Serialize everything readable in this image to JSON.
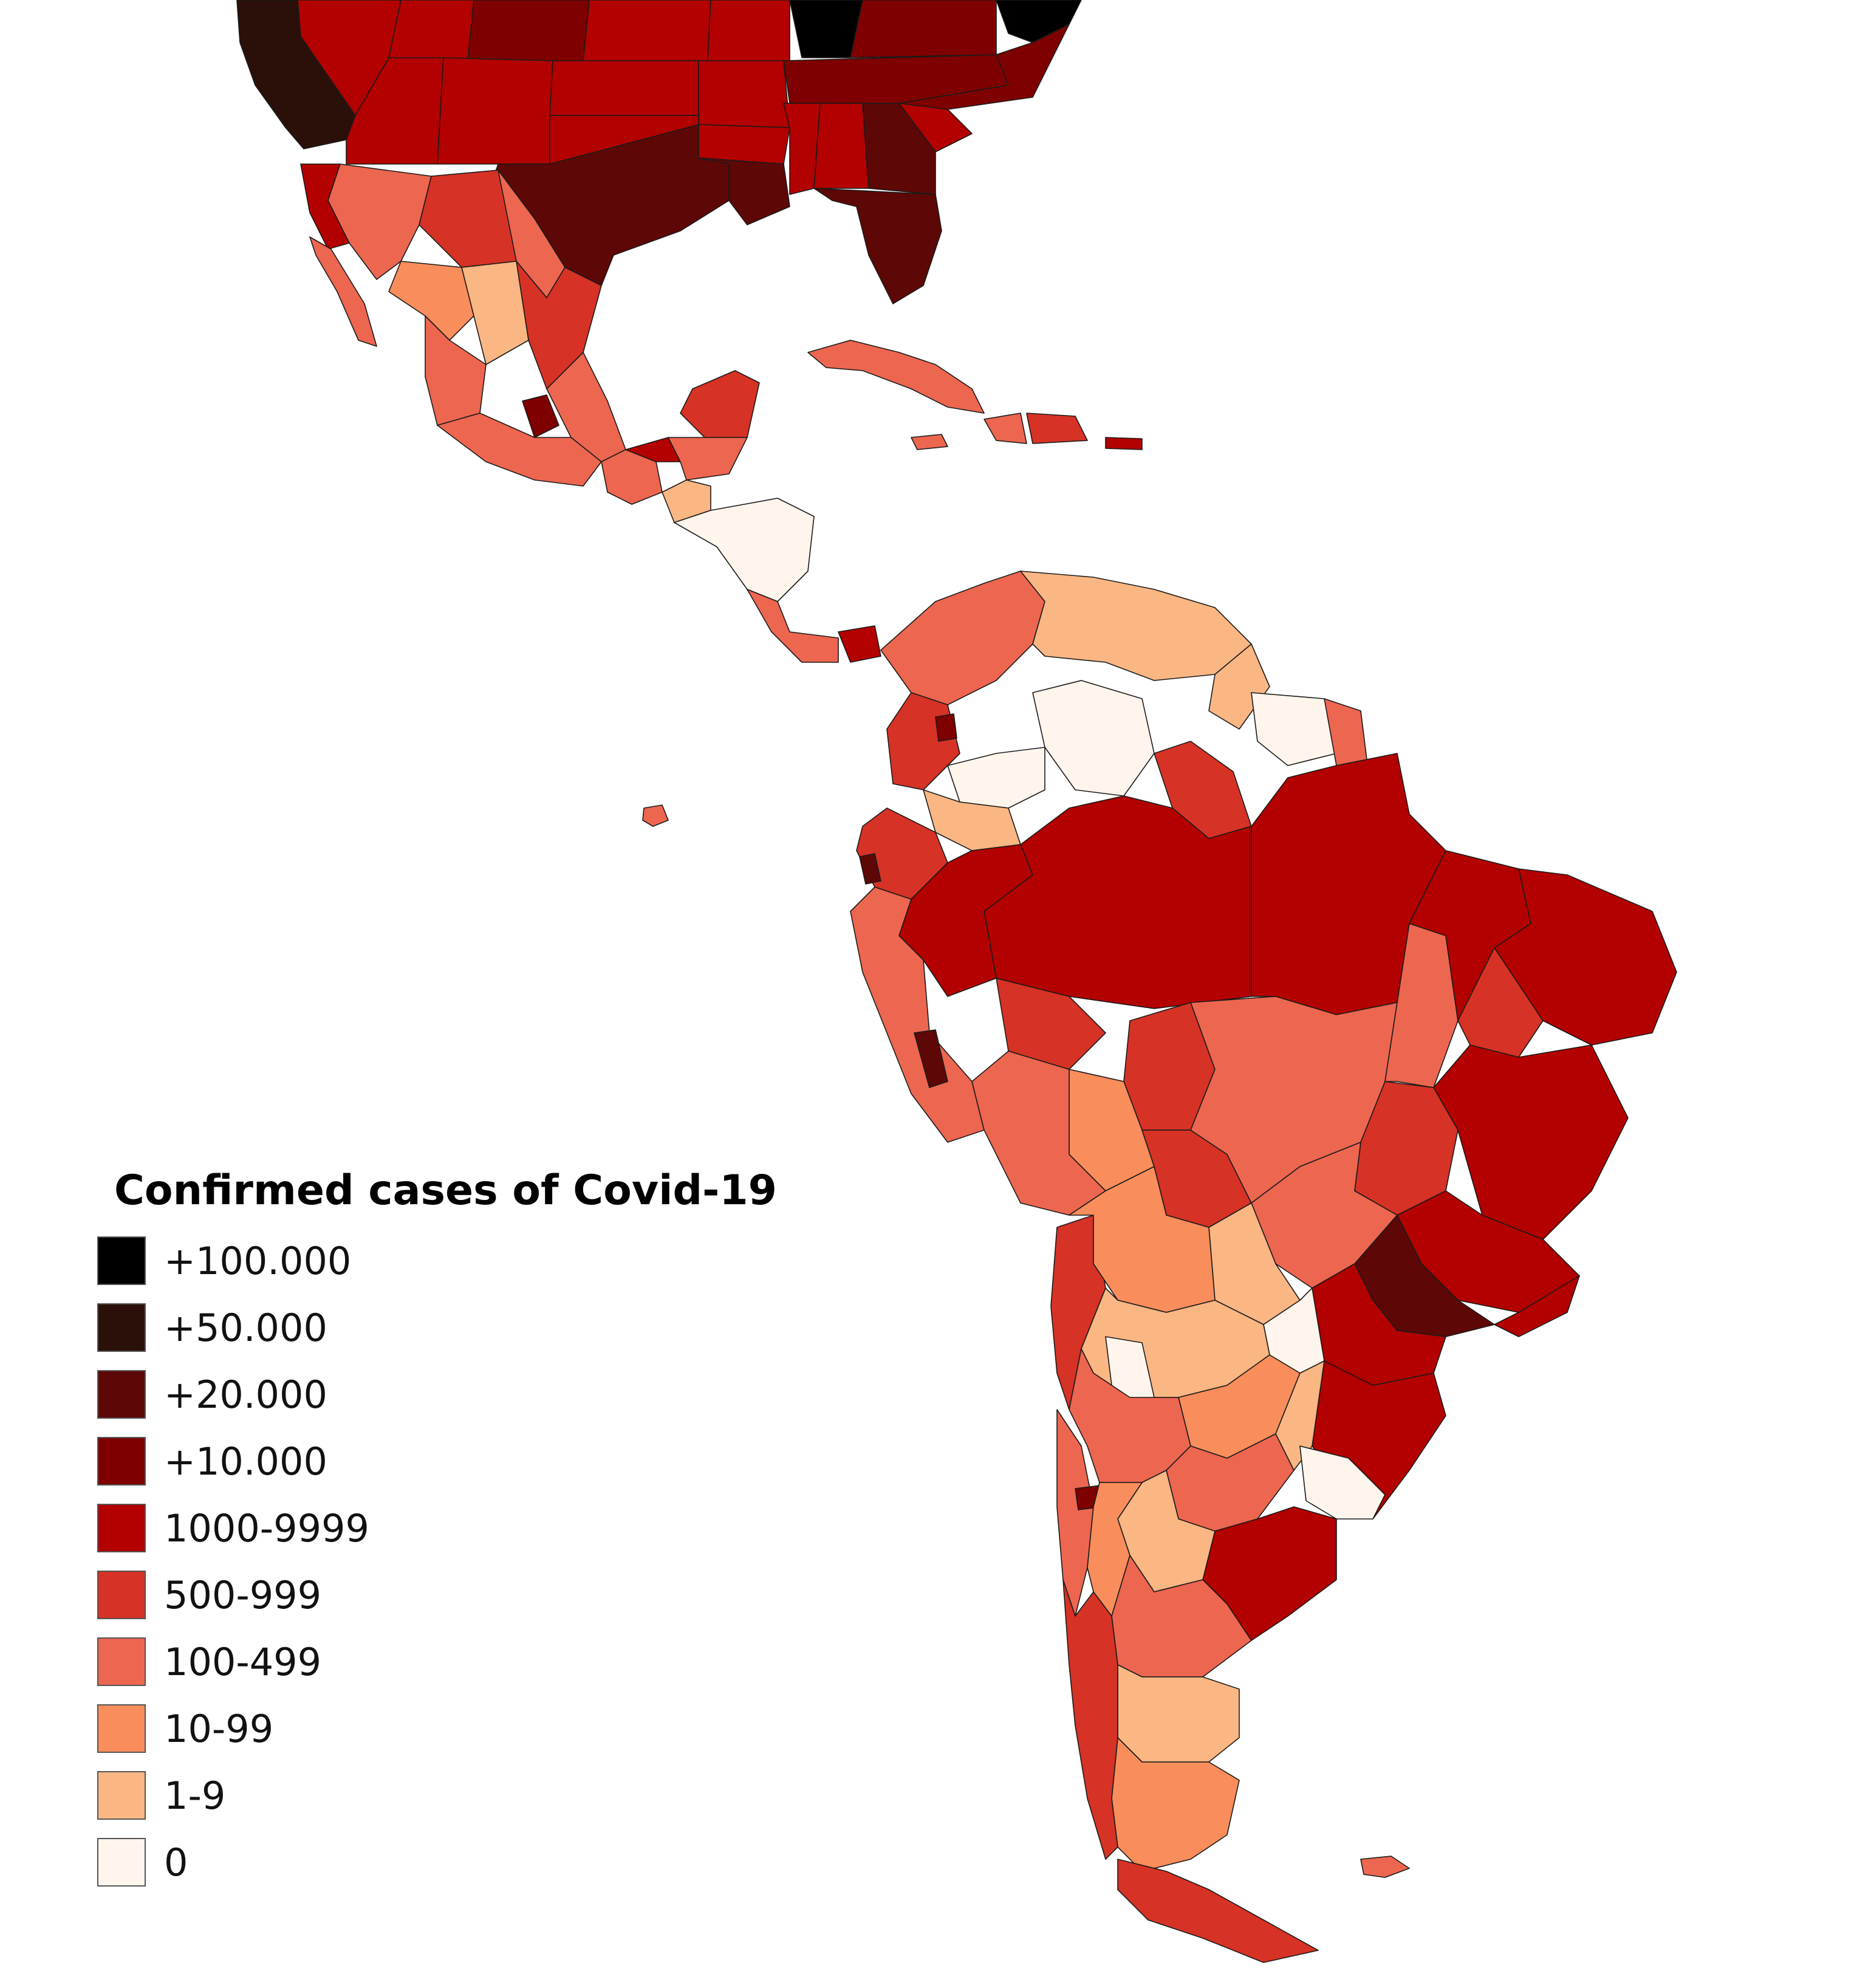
{
  "legend": {
    "title": "Confirmed cases of Covid-19",
    "items": [
      {
        "label": "+100.000",
        "color": "#000000"
      },
      {
        "label": "+50.000",
        "color": "#2b100a"
      },
      {
        "label": "+20.000",
        "color": "#5e0707"
      },
      {
        "label": "+10.000",
        "color": "#7e0000"
      },
      {
        "label": "1000-9999",
        "color": "#b30000"
      },
      {
        "label": "500-999",
        "color": "#d63225"
      },
      {
        "label": "100-499",
        "color": "#ed6650"
      },
      {
        "label": "10-99",
        "color": "#f98d5c"
      },
      {
        "label": "1-9",
        "color": "#fab683"
      },
      {
        "label": "0",
        "color": "#fff5ec"
      }
    ]
  },
  "map": {
    "subject": "Covid-19 confirmed cases by first-level administrative region",
    "extent": "Southern United States, Mexico, Central America, Caribbean and South America"
  }
}
